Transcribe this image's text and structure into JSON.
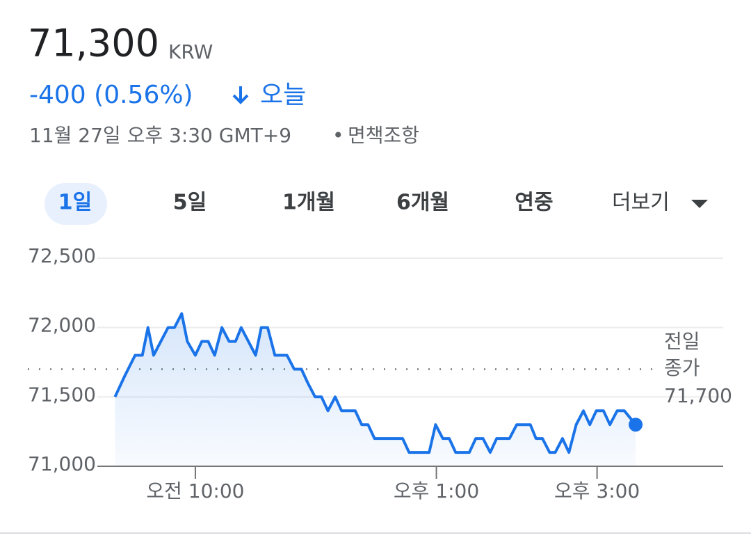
{
  "header": {
    "price": "71,300",
    "currency": "KRW",
    "change": "-400 (0.56%)",
    "period": "오늘",
    "timestamp": "11월 27일 오후 3:30 GMT+9",
    "separator": "•",
    "disclaimer": "면책조항"
  },
  "tabs": [
    "1일",
    "5일",
    "1개월",
    "6개월",
    "연중"
  ],
  "more": "더보기",
  "chart_data": {
    "type": "line",
    "color": "#1a73e8",
    "x": [
      9.0,
      9.12,
      9.25,
      9.34,
      9.41,
      9.48,
      9.57,
      9.66,
      9.74,
      9.83,
      9.9,
      10.0,
      10.08,
      10.16,
      10.24,
      10.33,
      10.42,
      10.5,
      10.57,
      10.66,
      10.75,
      10.82,
      10.9,
      10.99,
      11.14,
      11.23,
      11.32,
      11.4,
      11.49,
      11.57,
      11.65,
      11.74,
      11.82,
      11.99,
      12.07,
      12.15,
      12.23,
      12.58,
      12.66,
      12.91,
      12.99,
      13.08,
      13.16,
      13.24,
      13.41,
      13.49,
      13.58,
      13.67,
      13.75,
      13.91,
      14.0,
      14.17,
      14.24,
      14.32,
      14.41,
      14.48,
      14.57,
      14.65,
      14.74,
      14.83,
      14.91,
      14.99,
      15.08,
      15.16,
      15.25,
      15.34,
      15.48
    ],
    "values": [
      71500,
      71650,
      71800,
      71800,
      72000,
      71800,
      71900,
      72000,
      72000,
      72100,
      71900,
      71800,
      71900,
      71900,
      71800,
      72000,
      71900,
      71900,
      72000,
      71900,
      71800,
      72000,
      72000,
      71800,
      71800,
      71700,
      71700,
      71600,
      71500,
      71500,
      71400,
      71500,
      71400,
      71400,
      71300,
      71300,
      71200,
      71200,
      71100,
      71100,
      71300,
      71200,
      71200,
      71100,
      71100,
      71200,
      71200,
      71100,
      71200,
      71200,
      71300,
      71300,
      71200,
      71200,
      71100,
      71100,
      71200,
      71100,
      71300,
      71400,
      71300,
      71400,
      71400,
      71300,
      71400,
      71400,
      71300
    ],
    "xlim": [
      8.78,
      16.57
    ],
    "ylim": [
      71000,
      72500
    ],
    "xticks": [
      {
        "value": 10,
        "label": "오전 10:00"
      },
      {
        "value": 13,
        "label": "오후 1:00"
      },
      {
        "value": 15,
        "label": "오후 3:00"
      }
    ],
    "yticks": [
      {
        "value": 71000,
        "label": "71,000"
      },
      {
        "value": 71500,
        "label": "71,500"
      },
      {
        "value": 72000,
        "label": "72,000"
      },
      {
        "value": 72500,
        "label": "72,500"
      }
    ],
    "grid": true,
    "reference": {
      "label": [
        "전일",
        "종가"
      ],
      "value": 71700,
      "value_label": "71,700"
    }
  }
}
